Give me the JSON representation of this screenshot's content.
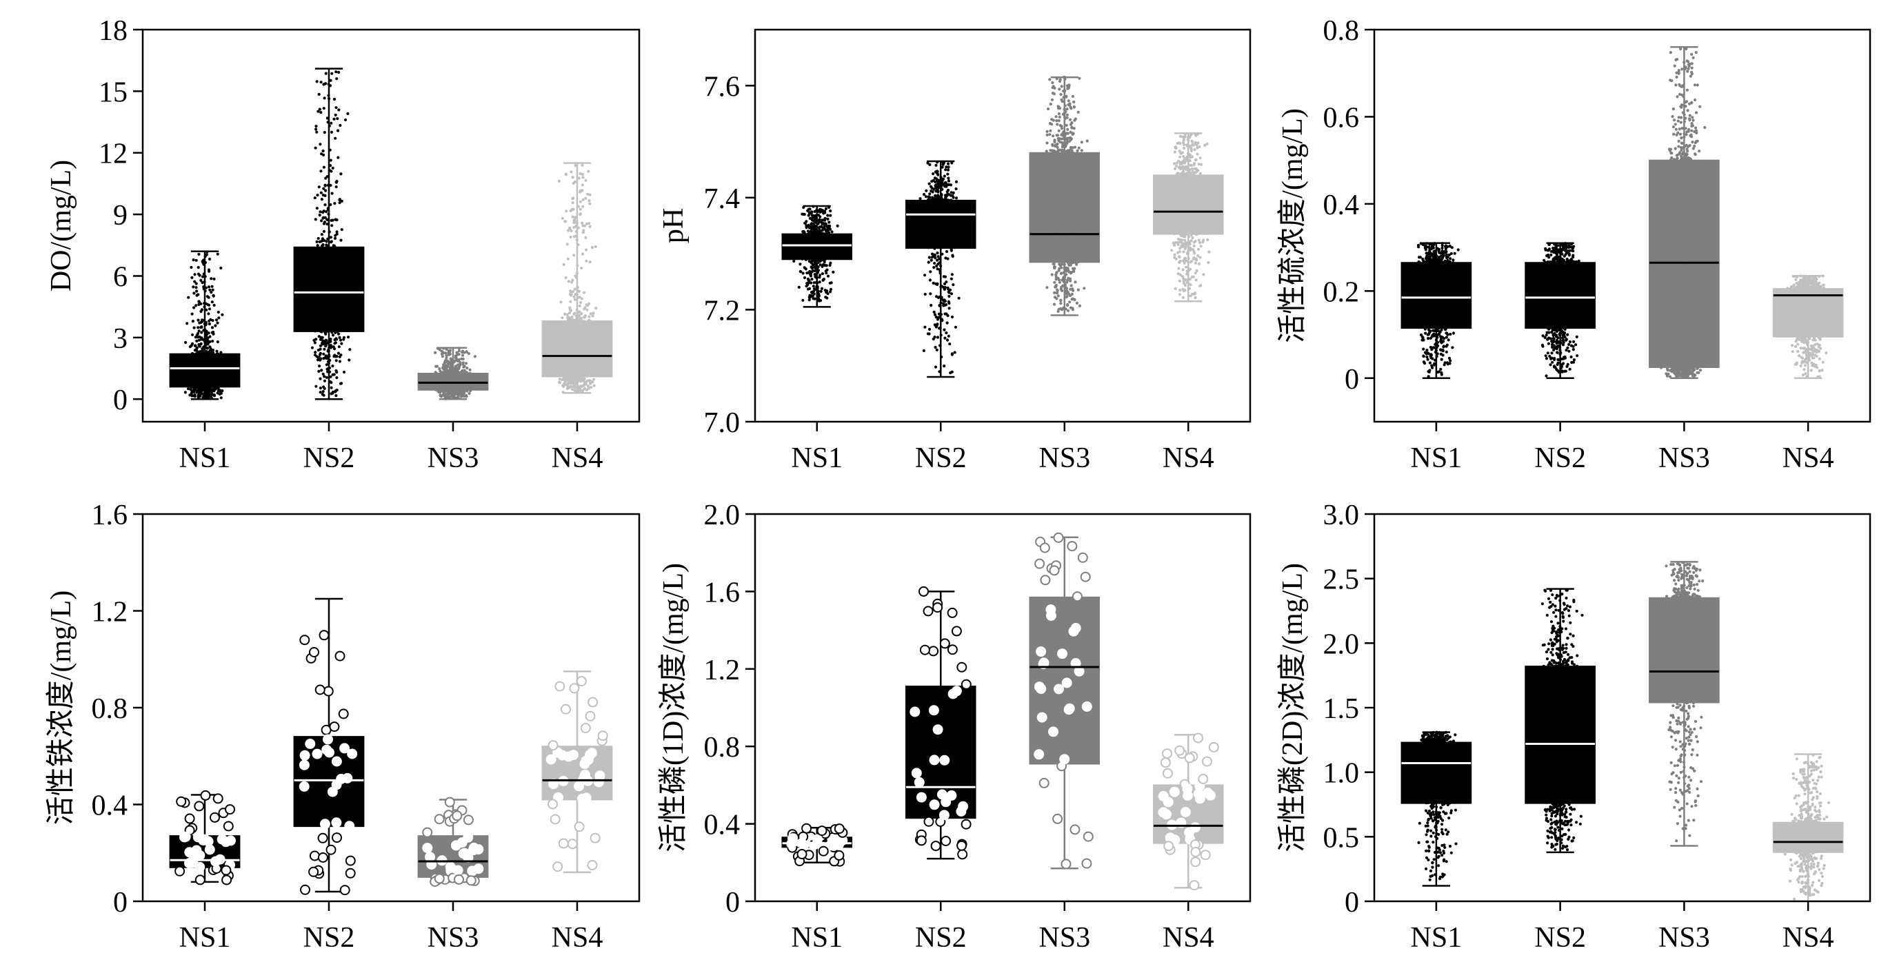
{
  "chart_data": [
    {
      "type": "box",
      "ylabel": "DO/(mg/L)",
      "ylim": [
        -1.1,
        18
      ],
      "yticks": [
        0,
        3,
        6,
        9,
        12,
        15,
        18
      ],
      "tick_labels": [
        "0",
        "3",
        "6",
        "9",
        "12",
        "15",
        "18"
      ],
      "categories": [
        "NS1",
        "NS2",
        "NS3",
        "NS4"
      ],
      "colors": [
        "#000000",
        "#000000",
        "#7f7f7f",
        "#c0c0c0"
      ],
      "median_colors": [
        "#ffffff",
        "#ffffff",
        "#000000",
        "#000000"
      ],
      "points": "dense",
      "boxes": [
        {
          "min": 0.0,
          "q1": 0.6,
          "median": 1.5,
          "q3": 2.2,
          "max": 7.2
        },
        {
          "min": 0.0,
          "q1": 3.3,
          "median": 5.2,
          "q3": 7.4,
          "max": 16.1
        },
        {
          "min": 0.0,
          "q1": 0.45,
          "median": 0.8,
          "q3": 1.25,
          "max": 2.5
        },
        {
          "min": 0.3,
          "q1": 1.1,
          "median": 2.1,
          "q3": 3.8,
          "max": 11.5
        }
      ]
    },
    {
      "type": "box",
      "ylabel": "pH",
      "ylim": [
        7.0,
        7.7
      ],
      "yticks": [
        7.0,
        7.2,
        7.4,
        7.6
      ],
      "tick_labels": [
        "7.0",
        "7.2",
        "7.4",
        "7.6"
      ],
      "categories": [
        "NS1",
        "NS2",
        "NS3",
        "NS4"
      ],
      "colors": [
        "#000000",
        "#000000",
        "#7f7f7f",
        "#c0c0c0"
      ],
      "median_colors": [
        "#ffffff",
        "#ffffff",
        "#000000",
        "#000000"
      ],
      "points": "dense",
      "boxes": [
        {
          "min": 7.205,
          "q1": 7.29,
          "median": 7.315,
          "q3": 7.335,
          "max": 7.385
        },
        {
          "min": 7.08,
          "q1": 7.31,
          "median": 7.37,
          "q3": 7.395,
          "max": 7.465
        },
        {
          "min": 7.19,
          "q1": 7.285,
          "median": 7.335,
          "q3": 7.48,
          "max": 7.615
        },
        {
          "min": 7.215,
          "q1": 7.335,
          "median": 7.375,
          "q3": 7.44,
          "max": 7.515
        }
      ]
    },
    {
      "type": "box",
      "ylabel": "活性硫浓度/(mg/L)",
      "ylim": [
        -0.1,
        0.8
      ],
      "yticks": [
        0,
        0.2,
        0.4,
        0.6,
        0.8
      ],
      "tick_labels": [
        "0",
        "0.2",
        "0.4",
        "0.6",
        "0.8"
      ],
      "categories": [
        "NS1",
        "NS2",
        "NS3",
        "NS4"
      ],
      "colors": [
        "#000000",
        "#000000",
        "#7f7f7f",
        "#c0c0c0"
      ],
      "median_colors": [
        "#ffffff",
        "#ffffff",
        "#000000",
        "#000000"
      ],
      "points": "dense",
      "boxes": [
        {
          "min": 0.0,
          "q1": 0.115,
          "median": 0.185,
          "q3": 0.265,
          "max": 0.31
        },
        {
          "min": 0.0,
          "q1": 0.115,
          "median": 0.185,
          "q3": 0.265,
          "max": 0.31
        },
        {
          "min": 0.0,
          "q1": 0.025,
          "median": 0.265,
          "q3": 0.5,
          "max": 0.76
        },
        {
          "min": 0.0,
          "q1": 0.095,
          "median": 0.19,
          "q3": 0.205,
          "max": 0.235
        }
      ]
    },
    {
      "type": "box",
      "ylabel": "活性铁浓度/(mg/L)",
      "ylim": [
        0,
        1.6
      ],
      "yticks": [
        0,
        0.4,
        0.8,
        1.2,
        1.6
      ],
      "tick_labels": [
        "0",
        "0.4",
        "0.8",
        "1.2",
        "1.6"
      ],
      "categories": [
        "NS1",
        "NS2",
        "NS3",
        "NS4"
      ],
      "colors": [
        "#000000",
        "#000000",
        "#7f7f7f",
        "#c0c0c0"
      ],
      "median_colors": [
        "#ffffff",
        "#ffffff",
        "#000000",
        "#000000"
      ],
      "points": "sparse",
      "boxes": [
        {
          "min": 0.08,
          "q1": 0.14,
          "median": 0.17,
          "q3": 0.27,
          "max": 0.44
        },
        {
          "min": 0.04,
          "q1": 0.31,
          "median": 0.5,
          "q3": 0.68,
          "max": 1.25
        },
        {
          "min": 0.08,
          "q1": 0.1,
          "median": 0.165,
          "q3": 0.27,
          "max": 0.42
        },
        {
          "min": 0.12,
          "q1": 0.42,
          "median": 0.5,
          "q3": 0.64,
          "max": 0.95
        }
      ]
    },
    {
      "type": "box",
      "ylabel": "活性磷(1D)浓度/(mg/L)",
      "ylim": [
        0,
        2.0
      ],
      "yticks": [
        0,
        0.4,
        0.8,
        1.2,
        1.6,
        2.0
      ],
      "tick_labels": [
        "0",
        "0.4",
        "0.8",
        "1.2",
        "1.6",
        "2.0"
      ],
      "categories": [
        "NS1",
        "NS2",
        "NS3",
        "NS4"
      ],
      "colors": [
        "#000000",
        "#000000",
        "#7f7f7f",
        "#c0c0c0"
      ],
      "median_colors": [
        "#ffffff",
        "#ffffff",
        "#000000",
        "#000000"
      ],
      "points": "sparse",
      "boxes": [
        {
          "min": 0.2,
          "q1": 0.28,
          "median": 0.3,
          "q3": 0.33,
          "max": 0.38
        },
        {
          "min": 0.22,
          "q1": 0.43,
          "median": 0.59,
          "q3": 1.11,
          "max": 1.6
        },
        {
          "min": 0.17,
          "q1": 0.71,
          "median": 1.21,
          "q3": 1.57,
          "max": 1.88
        },
        {
          "min": 0.07,
          "q1": 0.3,
          "median": 0.39,
          "q3": 0.6,
          "max": 0.86
        }
      ]
    },
    {
      "type": "box",
      "ylabel": "活性磷(2D)浓度/(mg/L)",
      "ylim": [
        0,
        3.0
      ],
      "yticks": [
        0,
        0.5,
        1.0,
        1.5,
        2.0,
        2.5,
        3.0
      ],
      "tick_labels": [
        "0",
        "0.5",
        "1.0",
        "1.5",
        "2.0",
        "2.5",
        "3.0"
      ],
      "categories": [
        "NS1",
        "NS2",
        "NS3",
        "NS4"
      ],
      "colors": [
        "#000000",
        "#000000",
        "#7f7f7f",
        "#c0c0c0"
      ],
      "median_colors": [
        "#ffffff",
        "#ffffff",
        "#000000",
        "#000000"
      ],
      "points": "dense",
      "boxes": [
        {
          "min": 0.12,
          "q1": 0.76,
          "median": 1.07,
          "q3": 1.23,
          "max": 1.31
        },
        {
          "min": 0.38,
          "q1": 0.76,
          "median": 1.22,
          "q3": 1.82,
          "max": 2.42
        },
        {
          "min": 0.43,
          "q1": 1.54,
          "median": 1.78,
          "q3": 2.35,
          "max": 2.63
        },
        {
          "min": 0.0,
          "q1": 0.38,
          "median": 0.46,
          "q3": 0.61,
          "max": 1.14
        }
      ]
    }
  ]
}
